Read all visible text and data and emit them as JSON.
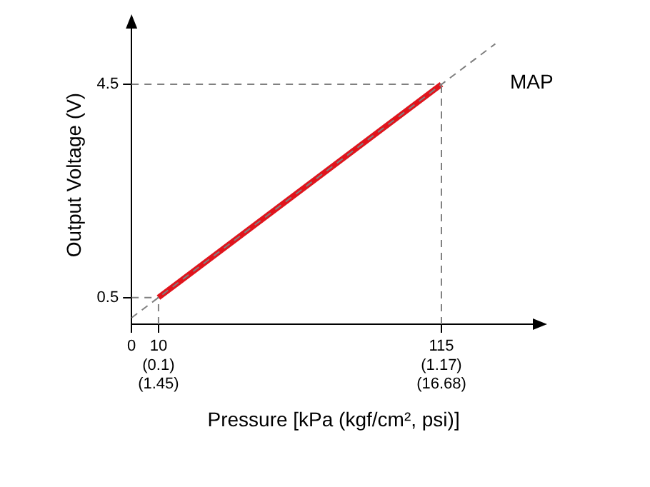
{
  "chart_data": {
    "type": "line",
    "xlabel": "Pressure [kPa (kgf/cm², psi)]",
    "ylabel": "Output Voltage (V)",
    "annotations": [
      "MAP",
      "(0.1)\n(1.45)",
      "(1.17)\n(16.68)"
    ],
    "xlim": [
      0,
      150
    ],
    "ylim": [
      0,
      5.6
    ],
    "xticks": [
      0,
      10,
      115
    ],
    "yticks": [
      0.5,
      4.5
    ],
    "grid": false,
    "legend": false,
    "marker": "none",
    "series": [
      {
        "color": "#808080",
        "line_style": "dashed",
        "x": [
          0,
          135
        ],
        "values": [
          0.12,
          5.26
        ]
      },
      {
        "color": "#808080",
        "line_style": "dashed",
        "x": [
          10,
          10
        ],
        "values": [
          0,
          0.5
        ]
      },
      {
        "color": "#808080",
        "line_style": "dashed",
        "x": [
          0,
          10
        ],
        "values": [
          0.5,
          0.5
        ]
      },
      {
        "color": "#808080",
        "line_style": "dashed",
        "x": [
          115,
          115
        ],
        "values": [
          0,
          4.5
        ]
      },
      {
        "color": "#808080",
        "line_style": "dashed",
        "x": [
          0,
          115
        ],
        "values": [
          4.5,
          4.5
        ]
      },
      {
        "color": "#e0141c",
        "line_style": "solid",
        "x": [
          10,
          115
        ],
        "values": [
          0.5,
          4.5
        ]
      }
    ]
  }
}
